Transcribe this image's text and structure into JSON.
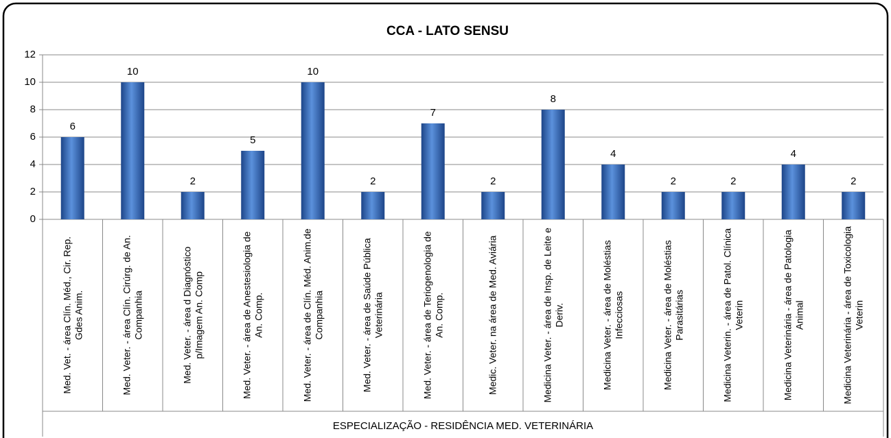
{
  "chart_data": {
    "type": "bar",
    "title": "CCA - LATO SENSU",
    "categories": [
      "Med. Vet. - área Clín. Méd., Cir. Rep. Gdes Anim.",
      "Med. Veter. - área Clín. Cirúrg. de An. Companhia",
      "Med. Veter. - área d Diagnóstico p/Imagem An. Comp",
      "Med. Veter. - área de Anestesiologia de An. Comp.",
      "Med. Veter. - área de Clín. Méd. Anim.de Companhia",
      "Med. Veter. - área de Saúde Pública Veterinária",
      "Med. Veter. - área de Teriogenologia de An. Comp.",
      "Medic. Veter. na área de Med. Aviária",
      "Medicina Veter. - área de Insp. de Leite e Deriv.",
      "Medicina Veter. - área de Moléstias Infecciosas",
      "Medicina Veter. - área de Moléstias Parasitárias",
      "Medicina Veterin. - área de Patol. Clínica Veterin",
      "Medicina Veterinária - área de Patologia Animal",
      "Medicina Veterinária - área de Toxicologia Veterin"
    ],
    "category_group": "ESPECIALIZAÇÃO - RESIDÊNCIA MED. VETERINÁRIA",
    "values": [
      6,
      10,
      2,
      5,
      10,
      2,
      7,
      2,
      8,
      4,
      2,
      2,
      4,
      2
    ],
    "color": "#2f66bd",
    "ylim": [
      0,
      12
    ],
    "yticks": [
      0,
      2,
      4,
      6,
      8,
      10,
      12
    ],
    "grid": true
  }
}
